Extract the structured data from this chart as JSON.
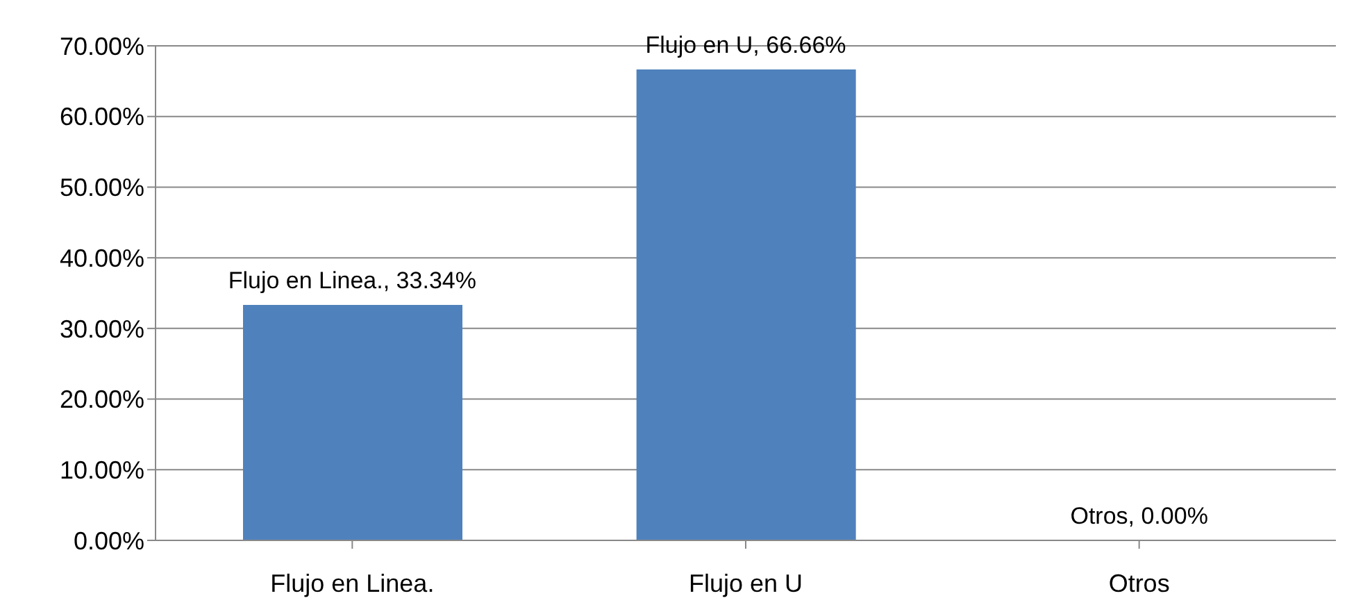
{
  "chart_data": {
    "type": "bar",
    "categories": [
      "Flujo en Linea.",
      "Flujo en U",
      "Otros"
    ],
    "values": [
      33.34,
      66.66,
      0
    ],
    "color": "#4f81bd",
    "value_labels": [
      "Flujo en Linea., 33.34%",
      "Flujo en U, 66.66%",
      "Otros, 0.00%"
    ],
    "ylim": [
      0,
      70
    ],
    "yticks": [
      {
        "value": 0,
        "label": "0.00%"
      },
      {
        "value": 10,
        "label": "10.00%"
      },
      {
        "value": 20,
        "label": "20.00%"
      },
      {
        "value": 30,
        "label": "30.00%"
      },
      {
        "value": 40,
        "label": "40.00%"
      },
      {
        "value": 50,
        "label": "50.00%"
      },
      {
        "value": 60,
        "label": "60.00%"
      },
      {
        "value": 70,
        "label": "70.00%"
      }
    ],
    "grid": "y",
    "legend": false
  }
}
